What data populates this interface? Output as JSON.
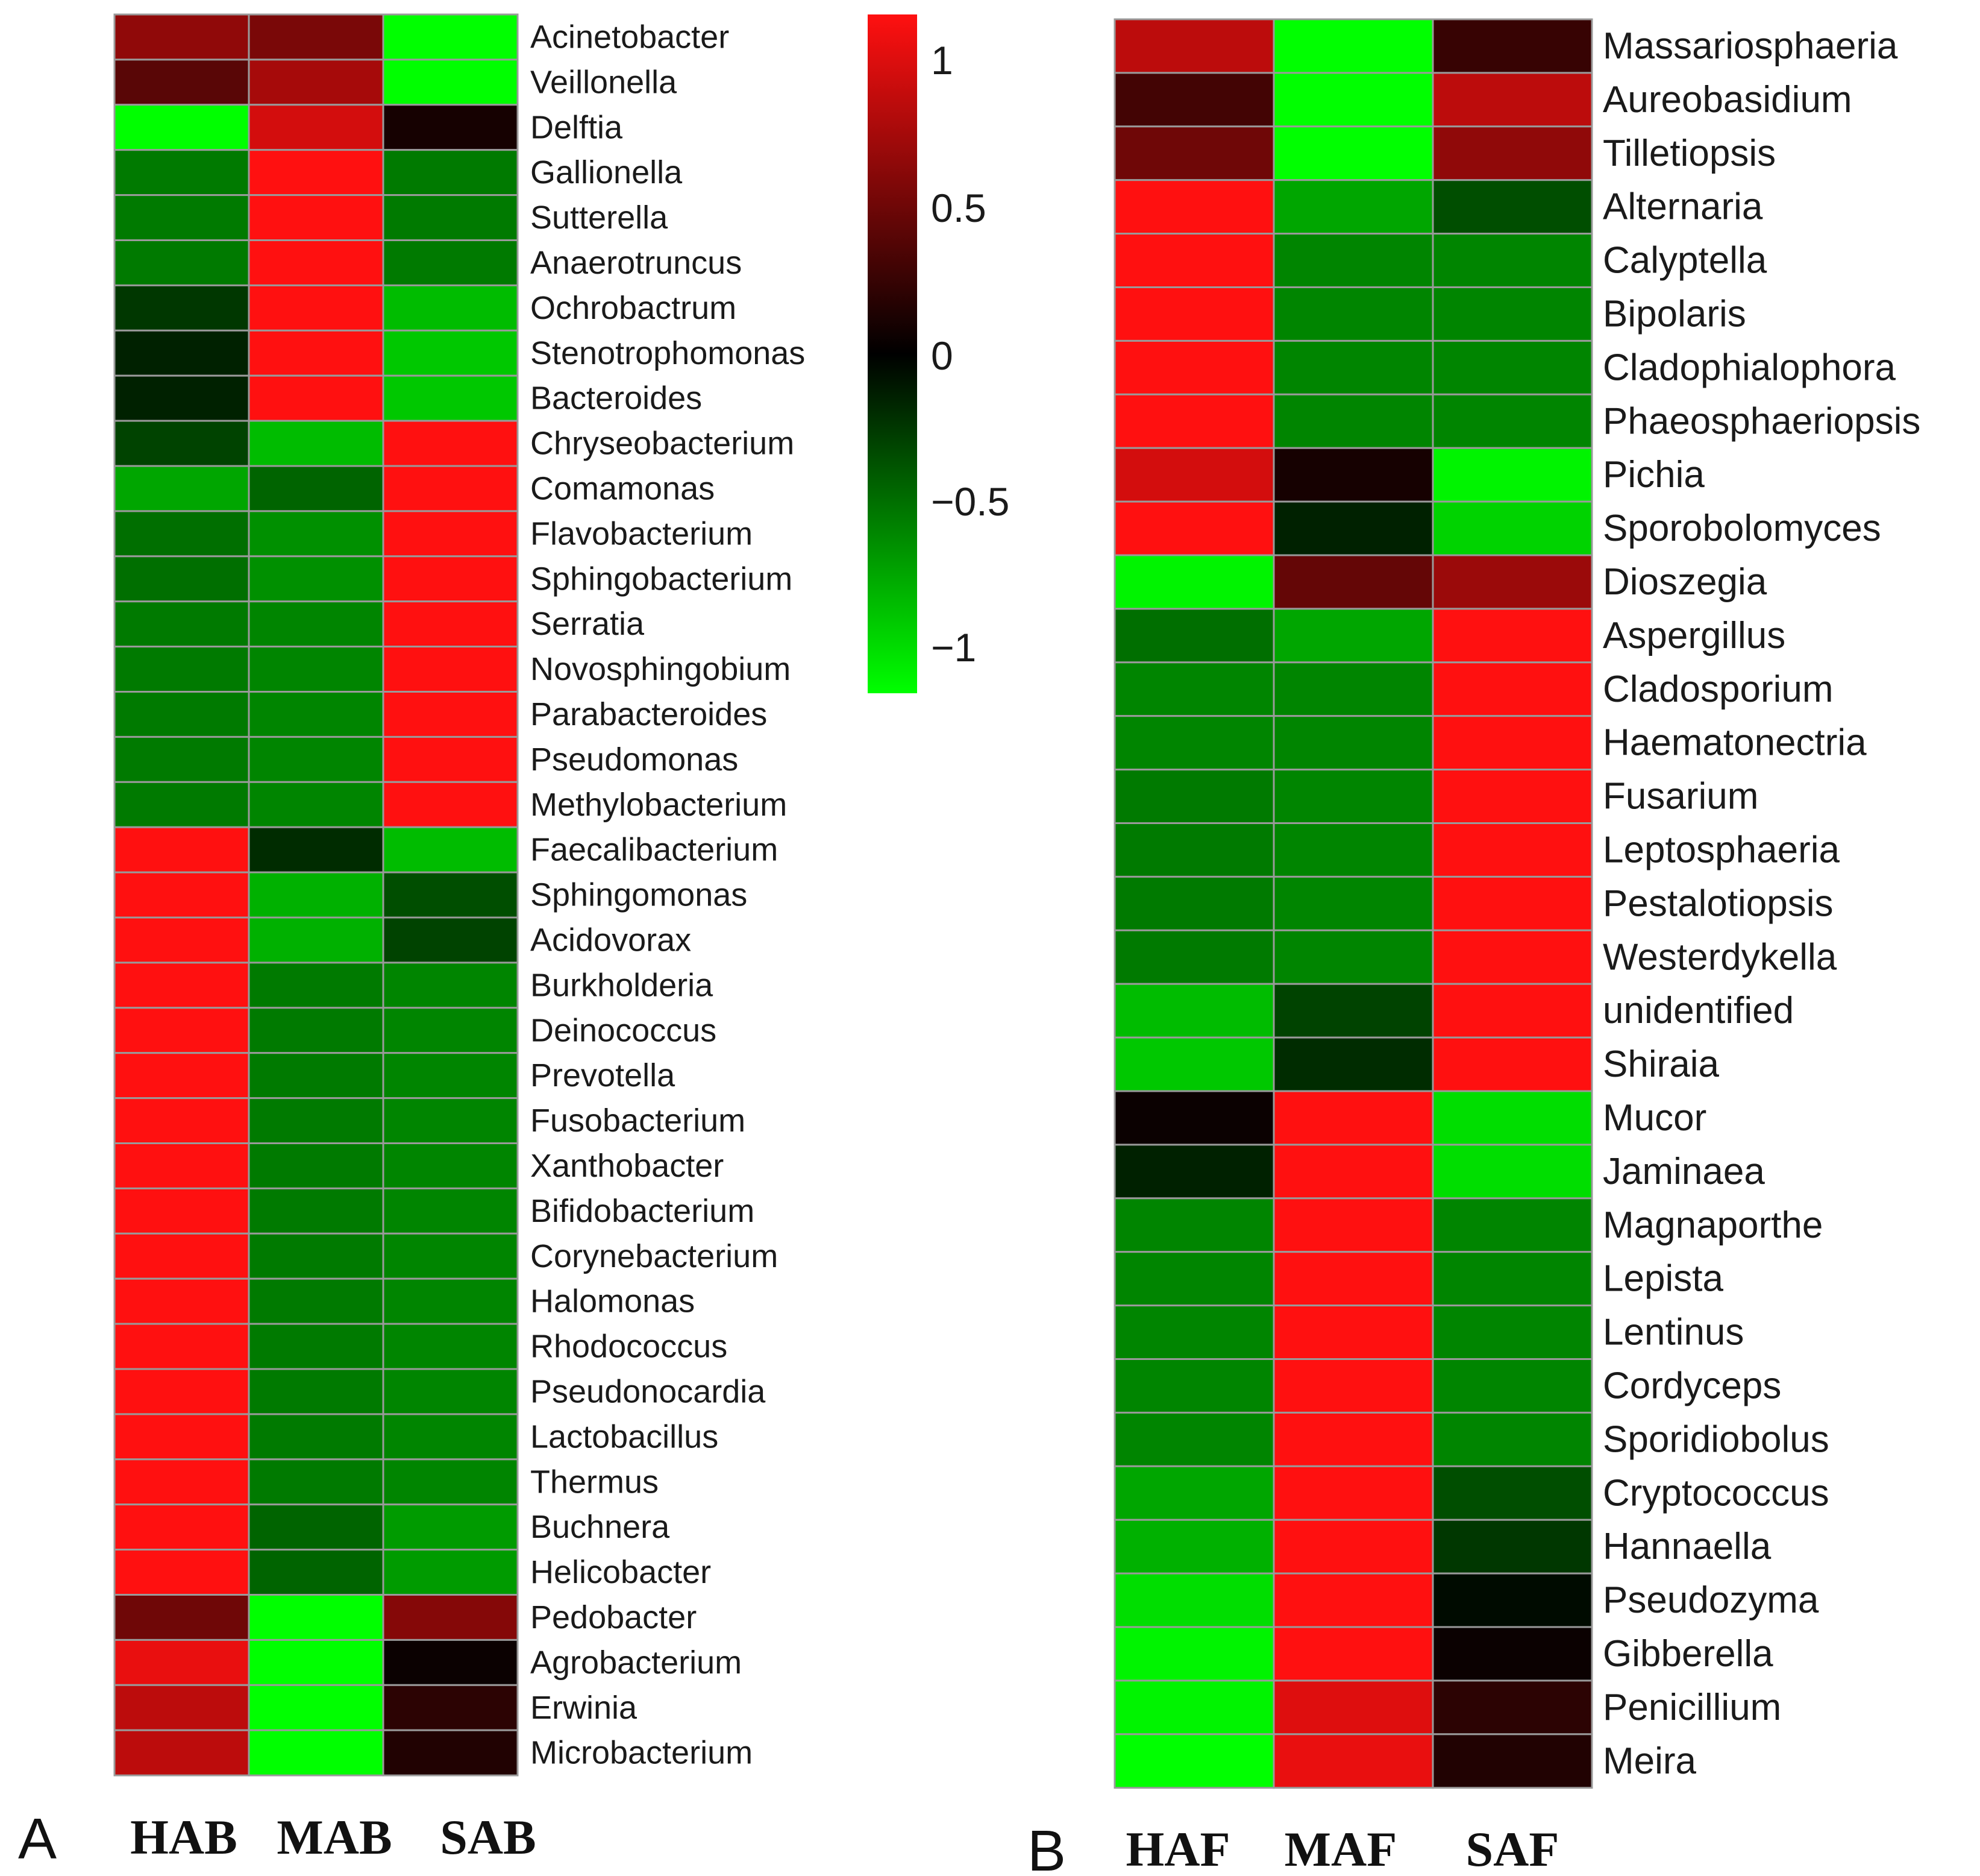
{
  "figure": {
    "colorbar": {
      "ticks": [
        "1",
        "0.5",
        "0",
        "−0.5",
        "−1"
      ]
    },
    "colors": {
      "high": "#ff1010",
      "mid": "#000000",
      "low": "#00ff00",
      "grid": "#9a9a9a"
    }
  },
  "chart_data": [
    {
      "type": "heatmap",
      "panel_label": "A",
      "columns": [
        "HAB",
        "MAB",
        "SAB"
      ],
      "rows": [
        "Acinetobacter",
        "Veillonella",
        "Delftia",
        "Gallionella",
        "Sutterella",
        "Anaerotruncus",
        "Ochrobactrum",
        "Stenotrophomonas",
        "Bacteroides",
        "Chryseobacterium",
        "Comamonas",
        "Flavobacterium",
        "Sphingobacterium",
        "Serratia",
        "Novosphingobium",
        "Parabacteroides",
        "Pseudomonas",
        "Methylobacterium",
        "Faecalibacterium",
        "Sphingomonas",
        "Acidovorax",
        "Burkholderia",
        "Deinococcus",
        "Prevotella",
        "Fusobacterium",
        "Xanthobacter",
        "Bifidobacterium",
        "Corynebacterium",
        "Halomonas",
        "Rhodococcus",
        "Pseudonocardia",
        "Lactobacillus",
        "Thermus",
        "Buchnera",
        "Helicobacter",
        "Pedobacter",
        "Agrobacterium",
        "Erwinia",
        "Microbacterium"
      ],
      "values": [
        [
          0.65,
          0.55,
          -1.15
        ],
        [
          0.4,
          0.75,
          -1.15
        ],
        [
          -1.15,
          0.95,
          0.1
        ],
        [
          -0.55,
          1.15,
          -0.55
        ],
        [
          -0.55,
          1.15,
          -0.55
        ],
        [
          -0.55,
          1.15,
          -0.55
        ],
        [
          -0.25,
          1.15,
          -0.85
        ],
        [
          -0.15,
          1.15,
          -0.9
        ],
        [
          -0.15,
          1.15,
          -0.9
        ],
        [
          -0.3,
          -0.85,
          1.15
        ],
        [
          -0.75,
          -0.45,
          1.15
        ],
        [
          -0.5,
          -0.65,
          1.15
        ],
        [
          -0.5,
          -0.65,
          1.15
        ],
        [
          -0.55,
          -0.6,
          1.15
        ],
        [
          -0.55,
          -0.6,
          1.15
        ],
        [
          -0.55,
          -0.6,
          1.15
        ],
        [
          -0.55,
          -0.6,
          1.15
        ],
        [
          -0.55,
          -0.6,
          1.15
        ],
        [
          1.15,
          -0.2,
          -0.85
        ],
        [
          1.15,
          -0.8,
          -0.35
        ],
        [
          1.15,
          -0.8,
          -0.3
        ],
        [
          1.15,
          -0.55,
          -0.6
        ],
        [
          1.15,
          -0.55,
          -0.6
        ],
        [
          1.15,
          -0.55,
          -0.6
        ],
        [
          1.15,
          -0.55,
          -0.6
        ],
        [
          1.15,
          -0.55,
          -0.6
        ],
        [
          1.15,
          -0.55,
          -0.6
        ],
        [
          1.15,
          -0.55,
          -0.6
        ],
        [
          1.15,
          -0.55,
          -0.6
        ],
        [
          1.15,
          -0.55,
          -0.6
        ],
        [
          1.15,
          -0.55,
          -0.6
        ],
        [
          1.15,
          -0.55,
          -0.6
        ],
        [
          1.15,
          -0.55,
          -0.6
        ],
        [
          1.15,
          -0.45,
          -0.7
        ],
        [
          1.15,
          -0.45,
          -0.7
        ],
        [
          0.5,
          -1.15,
          0.6
        ],
        [
          1.05,
          -1.15,
          0.05
        ],
        [
          0.85,
          -1.15,
          0.2
        ],
        [
          0.85,
          -1.15,
          0.15
        ]
      ],
      "color_range": [
        -1.15,
        1.15
      ]
    },
    {
      "type": "heatmap",
      "panel_label": "B",
      "columns": [
        "HAF",
        "MAF",
        "SAF"
      ],
      "rows": [
        "Massariosphaeria",
        "Aureobasidium",
        "Tilletiopsis",
        "Alternaria",
        "Calyptella",
        "Bipolaris",
        "Cladophialophora",
        "Phaeosphaeriopsis",
        "Pichia",
        "Sporobolomyces",
        "Dioszegia",
        "Aspergillus",
        "Cladosporium",
        "Haematonectria",
        "Fusarium",
        "Leptosphaeria",
        "Pestalotiopsis",
        "Westerdykella",
        "unidentified",
        "Shiraia",
        "Mucor",
        "Jaminaea",
        "Magnaporthe",
        "Lepista",
        "Lentinus",
        "Cordyceps",
        "Sporidiobolus",
        "Cryptococcus",
        "Hannaella",
        "Pseudozyma",
        "Gibberella",
        "Penicillium",
        "Meira"
      ],
      "values": [
        [
          0.85,
          -1.15,
          0.25
        ],
        [
          0.3,
          -1.15,
          0.85
        ],
        [
          0.5,
          -1.15,
          0.65
        ],
        [
          1.15,
          -0.75,
          -0.35
        ],
        [
          1.15,
          -0.6,
          -0.6
        ],
        [
          1.15,
          -0.6,
          -0.6
        ],
        [
          1.15,
          -0.6,
          -0.6
        ],
        [
          1.15,
          -0.6,
          -0.6
        ],
        [
          0.95,
          0.1,
          -1.1
        ],
        [
          1.15,
          -0.15,
          -0.95
        ],
        [
          -1.1,
          0.45,
          0.7
        ],
        [
          -0.5,
          -0.75,
          1.15
        ],
        [
          -0.6,
          -0.6,
          1.15
        ],
        [
          -0.6,
          -0.6,
          1.15
        ],
        [
          -0.55,
          -0.6,
          1.15
        ],
        [
          -0.55,
          -0.6,
          1.15
        ],
        [
          -0.55,
          -0.6,
          1.15
        ],
        [
          -0.55,
          -0.6,
          1.15
        ],
        [
          -0.85,
          -0.3,
          1.15
        ],
        [
          -0.9,
          -0.2,
          1.15
        ],
        [
          0.05,
          1.15,
          -1.0
        ],
        [
          -0.15,
          1.15,
          -1.0
        ],
        [
          -0.6,
          1.15,
          -0.6
        ],
        [
          -0.6,
          1.15,
          -0.6
        ],
        [
          -0.6,
          1.15,
          -0.6
        ],
        [
          -0.6,
          1.15,
          -0.6
        ],
        [
          -0.6,
          1.15,
          -0.6
        ],
        [
          -0.75,
          1.15,
          -0.35
        ],
        [
          -0.8,
          1.15,
          -0.25
        ],
        [
          -1.0,
          1.15,
          -0.05
        ],
        [
          -1.1,
          1.15,
          0.05
        ],
        [
          -1.1,
          1.0,
          0.2
        ],
        [
          -1.15,
          1.05,
          0.15
        ]
      ],
      "color_range": [
        -1.15,
        1.15
      ]
    }
  ]
}
